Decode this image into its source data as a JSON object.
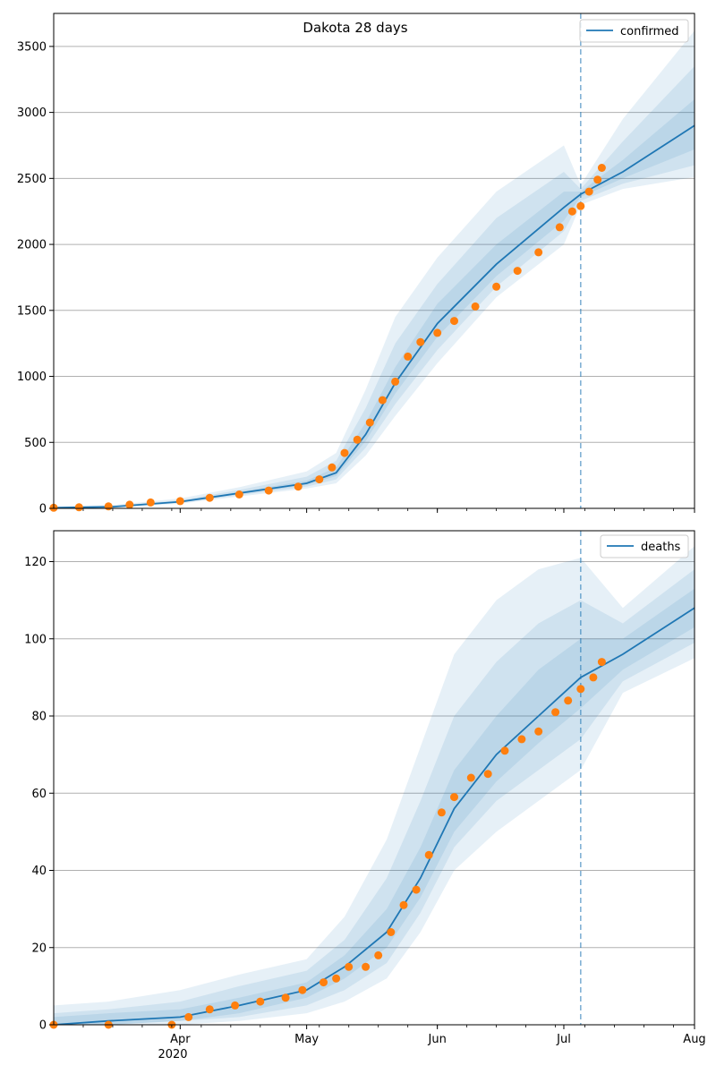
{
  "figure": {
    "title": "Dakota 28 days"
  },
  "chart_data": [
    {
      "type": "line",
      "title": "Dakota 28 days",
      "series_name": "confirmed",
      "ylim": [
        0,
        3750
      ],
      "yticks": [
        0,
        500,
        1000,
        1500,
        2000,
        2500,
        3000,
        3500
      ],
      "x_start": "2020-03-02",
      "x_end": "2020-08-01",
      "forecast_start": "2020-07-05",
      "x_major_ticks": [
        {
          "date": "2020-04-01",
          "label": "Apr"
        },
        {
          "date": "2020-05-01",
          "label": "May"
        },
        {
          "date": "2020-06-01",
          "label": "Jun"
        },
        {
          "date": "2020-07-01",
          "label": "Jul"
        },
        {
          "date": "2020-08-01",
          "label": "Aug"
        }
      ],
      "year_label": "2020",
      "grid": "y",
      "legend": "top-right",
      "model_curve": {
        "dates": [
          "2020-03-02",
          "2020-03-16",
          "2020-04-01",
          "2020-04-15",
          "2020-05-01",
          "2020-05-08",
          "2020-05-15",
          "2020-05-22",
          "2020-06-01",
          "2020-06-15",
          "2020-07-01",
          "2020-07-05",
          "2020-07-15",
          "2020-08-01"
        ],
        "values": [
          5,
          12,
          50,
          115,
          190,
          270,
          560,
          950,
          1400,
          1850,
          2280,
          2380,
          2550,
          2900
        ]
      },
      "confidence_bands": [
        {
          "lower": [
            0,
            5,
            35,
            90,
            150,
            190,
            400,
            700,
            1100,
            1600,
            2000,
            2300,
            2420,
            2510
          ],
          "upper": [
            12,
            25,
            75,
            160,
            280,
            420,
            900,
            1450,
            1900,
            2400,
            2750,
            2450,
            2950,
            3620
          ]
        },
        {
          "lower": [
            1,
            8,
            42,
            100,
            165,
            220,
            460,
            790,
            1200,
            1680,
            2100,
            2330,
            2460,
            2600
          ],
          "upper": [
            9,
            18,
            62,
            140,
            240,
            360,
            760,
            1250,
            1700,
            2200,
            2550,
            2420,
            2780,
            3350
          ]
        },
        {
          "lower": [
            3,
            10,
            46,
            108,
            178,
            245,
            510,
            870,
            1300,
            1760,
            2180,
            2360,
            2500,
            2720
          ],
          "upper": [
            7,
            15,
            56,
            125,
            210,
            310,
            650,
            1070,
            1550,
            2000,
            2400,
            2400,
            2640,
            3100
          ]
        }
      ],
      "observed": {
        "dates": [
          "2020-03-02",
          "2020-03-08",
          "2020-03-15",
          "2020-03-20",
          "2020-03-25",
          "2020-04-01",
          "2020-04-08",
          "2020-04-15",
          "2020-04-22",
          "2020-04-29",
          "2020-05-04",
          "2020-05-07",
          "2020-05-10",
          "2020-05-13",
          "2020-05-16",
          "2020-05-19",
          "2020-05-22",
          "2020-05-25",
          "2020-05-28",
          "2020-06-01",
          "2020-06-05",
          "2020-06-10",
          "2020-06-15",
          "2020-06-20",
          "2020-06-25",
          "2020-06-30",
          "2020-07-03",
          "2020-07-05",
          "2020-07-07",
          "2020-07-09",
          "2020-07-10"
        ],
        "values": [
          5,
          8,
          15,
          28,
          45,
          55,
          80,
          105,
          135,
          165,
          220,
          310,
          420,
          520,
          650,
          820,
          960,
          1150,
          1260,
          1330,
          1420,
          1530,
          1680,
          1800,
          1940,
          2130,
          2250,
          2290,
          2400,
          2490,
          2580
        ]
      }
    },
    {
      "type": "line",
      "series_name": "deaths",
      "ylim": [
        0,
        128
      ],
      "yticks": [
        0,
        20,
        40,
        60,
        80,
        100,
        120
      ],
      "x_start": "2020-03-02",
      "x_end": "2020-08-01",
      "forecast_start": "2020-07-05",
      "x_major_ticks": [
        {
          "date": "2020-04-01",
          "label": "Apr"
        },
        {
          "date": "2020-05-01",
          "label": "May"
        },
        {
          "date": "2020-06-01",
          "label": "Jun"
        },
        {
          "date": "2020-07-01",
          "label": "Jul"
        },
        {
          "date": "2020-08-01",
          "label": "Aug"
        }
      ],
      "year_label": "2020",
      "grid": "y",
      "legend": "top-right",
      "model_curve": {
        "dates": [
          "2020-03-02",
          "2020-03-15",
          "2020-04-01",
          "2020-04-15",
          "2020-05-01",
          "2020-05-10",
          "2020-05-20",
          "2020-05-28",
          "2020-06-05",
          "2020-06-15",
          "2020-06-25",
          "2020-07-05",
          "2020-07-15",
          "2020-08-01"
        ],
        "values": [
          0,
          1,
          2,
          5,
          9,
          15,
          24,
          38,
          56,
          70,
          80,
          90,
          96,
          108
        ]
      },
      "confidence_bands": [
        {
          "lower": [
            0,
            0,
            0,
            1,
            3,
            6,
            12,
            24,
            40,
            50,
            58,
            66,
            86,
            95
          ],
          "upper": [
            5,
            6,
            9,
            13,
            17,
            28,
            48,
            72,
            96,
            110,
            118,
            121,
            108,
            124
          ]
        },
        {
          "lower": [
            0,
            0,
            1,
            2,
            5,
            9,
            16,
            29,
            46,
            58,
            66,
            74,
            89,
            99
          ],
          "upper": [
            3,
            4,
            6,
            10,
            14,
            22,
            38,
            58,
            80,
            94,
            104,
            110,
            104,
            118
          ]
        },
        {
          "lower": [
            0,
            0,
            1,
            3,
            7,
            12,
            20,
            33,
            50,
            63,
            73,
            82,
            92,
            103
          ],
          "upper": [
            2,
            3,
            4,
            7,
            11,
            18,
            30,
            46,
            66,
            80,
            92,
            100,
            100,
            113
          ]
        }
      ],
      "observed": {
        "dates": [
          "2020-03-02",
          "2020-03-15",
          "2020-03-30",
          "2020-04-03",
          "2020-04-08",
          "2020-04-14",
          "2020-04-20",
          "2020-04-26",
          "2020-04-30",
          "2020-05-05",
          "2020-05-08",
          "2020-05-11",
          "2020-05-15",
          "2020-05-18",
          "2020-05-21",
          "2020-05-24",
          "2020-05-27",
          "2020-05-30",
          "2020-06-02",
          "2020-06-05",
          "2020-06-09",
          "2020-06-13",
          "2020-06-17",
          "2020-06-21",
          "2020-06-25",
          "2020-06-29",
          "2020-07-02",
          "2020-07-05",
          "2020-07-08",
          "2020-07-10"
        ],
        "values": [
          0,
          0,
          0,
          2,
          4,
          5,
          6,
          7,
          9,
          11,
          12,
          15,
          15,
          18,
          24,
          31,
          35,
          44,
          55,
          59,
          64,
          65,
          71,
          74,
          76,
          81,
          84,
          87,
          90,
          94
        ]
      }
    }
  ],
  "legend": {
    "confirmed_label": "confirmed",
    "deaths_label": "deaths"
  },
  "colors": {
    "model_line": "#1f77b4",
    "band": "#1f77b4",
    "observed": "#ff7f0e",
    "grid": "#b0b0b0",
    "vline": "#1f77b4"
  }
}
